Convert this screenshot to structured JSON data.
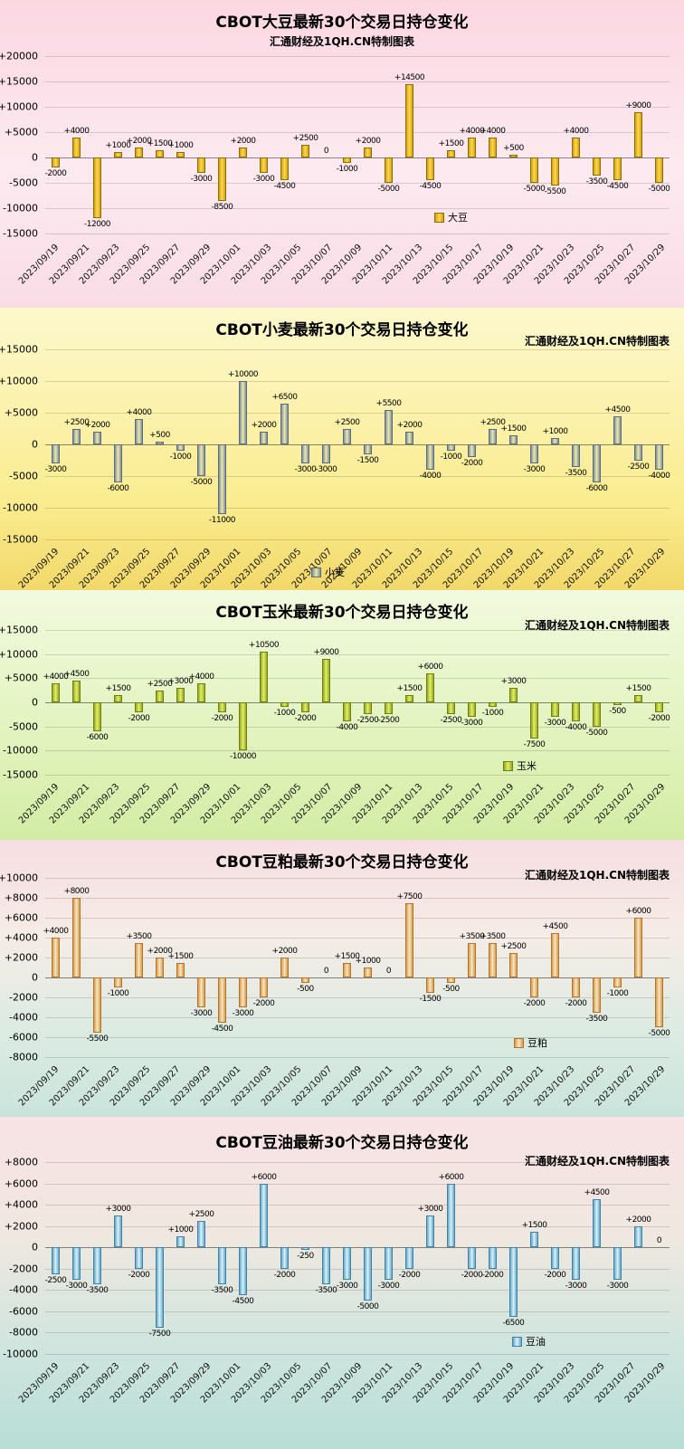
{
  "x_axis_dates": [
    "2023/09/19",
    "2023/09/21",
    "2023/09/23",
    "2023/09/25",
    "2023/09/27",
    "2023/09/29",
    "2023/10/01",
    "2023/10/03",
    "2023/10/05",
    "2023/10/07",
    "2023/10/09",
    "2023/10/11",
    "2023/10/13",
    "2023/10/15",
    "2023/10/17",
    "2023/10/19",
    "2023/10/21",
    "2023/10/23",
    "2023/10/25",
    "2023/10/27",
    "2023/10/29"
  ],
  "chart_data": [
    {
      "type": "bar",
      "title": "CBOT大豆最新30个交易日持仓变化",
      "subtitle": "汇通财经及1QH.CN特制图表",
      "legend": "大豆",
      "ylim": [
        -15000,
        20000
      ],
      "ystep": 5000,
      "grid": true,
      "values": [
        -2000,
        4000,
        -12000,
        1000,
        2000,
        1500,
        1000,
        -3000,
        -8500,
        2000,
        -3000,
        -4500,
        2500,
        0,
        -1000,
        2000,
        -5000,
        14500,
        -4500,
        1500,
        4000,
        4000,
        500,
        -5000,
        -5500,
        4000,
        -3500,
        -4500,
        9000,
        -5000
      ],
      "colors": {
        "bar_fill": "#ffd84d",
        "bar_edge": "#d19f12",
        "bar_border": "#8a6e00",
        "background": "#fbdde6"
      }
    },
    {
      "type": "bar",
      "title": "CBOT小麦最新30个交易日持仓变化",
      "subtitle": "汇通财经及1QH.CN特制图表",
      "legend": "小麦",
      "ylim": [
        -15000,
        15000
      ],
      "ystep": 5000,
      "grid": true,
      "values": [
        -3000,
        2500,
        2000,
        -6000,
        4000,
        500,
        -1000,
        -5000,
        -11000,
        10000,
        2000,
        6500,
        -3000,
        -3000,
        2500,
        -1500,
        5500,
        2000,
        -4000,
        -1000,
        -2000,
        2500,
        1500,
        -3000,
        1000,
        -3500,
        -6000,
        4500,
        -2500,
        -4000
      ],
      "colors": {
        "bar_fill": "#efe9a0",
        "bar_edge": "#7c8ea6",
        "bar_border": "#5a6b82",
        "background": "#f8ec9a"
      }
    },
    {
      "type": "bar",
      "title": "CBOT玉米最新30个交易日持仓变化",
      "subtitle": "汇通财经及1QH.CN特制图表",
      "legend": "玉米",
      "ylim": [
        -15000,
        15000
      ],
      "ystep": 5000,
      "grid": true,
      "values": [
        4000,
        4500,
        -6000,
        1500,
        -2000,
        2500,
        3000,
        4000,
        -2000,
        -10000,
        10500,
        -1000,
        -2000,
        9000,
        -4000,
        -2500,
        -2500,
        1500,
        6000,
        -2500,
        -3000,
        -1000,
        3000,
        -7500,
        -3000,
        -4000,
        -5000,
        -500,
        1500,
        -2000
      ],
      "colors": {
        "bar_fill": "#e4ef66",
        "bar_edge": "#93a823",
        "bar_border": "#6d8012",
        "background": "#e7f5c6"
      }
    },
    {
      "type": "bar",
      "title": "CBOT豆粕最新30个交易日持仓变化",
      "subtitle": "汇通财经及1QH.CN特制图表",
      "legend": "豆粕",
      "ylim": [
        -8000,
        10000
      ],
      "ystep": 2000,
      "grid": true,
      "values": [
        4000,
        8000,
        -5500,
        -1000,
        3500,
        2000,
        1500,
        -3000,
        -4500,
        -3000,
        -2000,
        2000,
        -500,
        0,
        1500,
        1000,
        0,
        7500,
        -1500,
        -500,
        3500,
        3500,
        2500,
        -2000,
        4500,
        -2000,
        -3500,
        -1000,
        6000,
        -5000
      ],
      "colors": {
        "bar_fill": "#f6e7c4",
        "bar_edge": "#d79a4a",
        "bar_border": "#b5742a",
        "background": "#eadfd8"
      }
    },
    {
      "type": "bar",
      "title": "CBOT豆油最新30个交易日持仓变化",
      "subtitle": "汇通财经及1QH.CN特制图表",
      "legend": "豆油",
      "ylim": [
        -10000,
        8000
      ],
      "ystep": 2000,
      "grid": true,
      "values": [
        -2500,
        -3000,
        -3500,
        3000,
        -2000,
        -7500,
        1000,
        2500,
        -3500,
        -4500,
        6000,
        -2000,
        -250,
        -3500,
        -3000,
        -5000,
        -3000,
        -2000,
        3000,
        6000,
        -2000,
        -2000,
        -6500,
        1500,
        -2000,
        -3000,
        4500,
        -3000,
        2000,
        0
      ],
      "colors": {
        "bar_fill": "#d9f2fb",
        "bar_edge": "#66a7c7",
        "bar_border": "#3f83a8",
        "background": "#e5e8e0"
      }
    }
  ]
}
